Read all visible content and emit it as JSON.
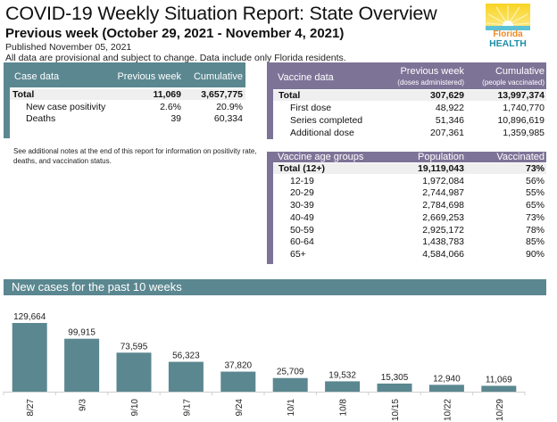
{
  "header": {
    "title": "COVID-19 Weekly Situation Report: State Overview",
    "subtitle": "Previous week (October 29, 2021 - November 4, 2021)",
    "published": "Published November 05, 2021",
    "disclaimer": "All data are provisional and subject to change. Data include only Florida residents."
  },
  "logo": {
    "line1": "Florida",
    "line2": "HEALTH",
    "icon": "sunrise-logo-icon"
  },
  "colors": {
    "case_teal": "#5b8790",
    "vaccine_purple": "#7d7397",
    "total_row_bg": "#efefef",
    "bar": "#5b8790"
  },
  "case_table": {
    "headers": [
      "Case data",
      "Previous week",
      "Cumulative"
    ],
    "rows": [
      {
        "label": "Total",
        "previous_week": "11,069",
        "cumulative": "3,657,775"
      },
      {
        "label": "New case positivity",
        "previous_week": "2.6%",
        "cumulative": "20.9%"
      },
      {
        "label": "Deaths",
        "previous_week": "39",
        "cumulative": "60,334"
      }
    ]
  },
  "notes": "See additional notes at the end of this report for information on positivity rate, deaths, and vaccination status.",
  "vaccine_table": {
    "headers": [
      "Vaccine data",
      "Previous week",
      "Cumulative"
    ],
    "subheaders": [
      "",
      "(doses administered)",
      "(people vaccinated)"
    ],
    "rows": [
      {
        "label": "Total",
        "previous_week": "307,629",
        "cumulative": "13,997,374"
      },
      {
        "label": "First dose",
        "previous_week": "48,922",
        "cumulative": "1,740,770"
      },
      {
        "label": "Series completed",
        "previous_week": "51,346",
        "cumulative": "10,896,619"
      },
      {
        "label": "Additional dose",
        "previous_week": "207,361",
        "cumulative": "1,359,985"
      }
    ]
  },
  "age_table": {
    "headers": [
      "Vaccine age groups",
      "Population",
      "Vaccinated"
    ],
    "rows": [
      {
        "label": "Total (12+)",
        "population": "19,119,043",
        "vaccinated": "73%"
      },
      {
        "label": "12-19",
        "population": "1,972,084",
        "vaccinated": "56%"
      },
      {
        "label": "20-29",
        "population": "2,744,987",
        "vaccinated": "55%"
      },
      {
        "label": "30-39",
        "population": "2,784,698",
        "vaccinated": "65%"
      },
      {
        "label": "40-49",
        "population": "2,669,253",
        "vaccinated": "73%"
      },
      {
        "label": "50-59",
        "population": "2,925,172",
        "vaccinated": "78%"
      },
      {
        "label": "60-64",
        "population": "1,438,783",
        "vaccinated": "85%"
      },
      {
        "label": "65+",
        "population": "4,584,066",
        "vaccinated": "90%"
      }
    ]
  },
  "chart_section": {
    "title": "New cases for the past 10 weeks"
  },
  "chart_data": {
    "type": "bar",
    "title": "New cases for the past 10 weeks",
    "xlabel": "",
    "ylabel": "",
    "categories": [
      "8/27",
      "9/3",
      "9/10",
      "9/17",
      "9/24",
      "10/1",
      "10/8",
      "10/15",
      "10/22",
      "10/29"
    ],
    "values": [
      129664,
      99915,
      73595,
      56323,
      37820,
      25709,
      19532,
      15305,
      12940,
      11069
    ],
    "value_labels": [
      "129,664",
      "99,915",
      "73,595",
      "56,323",
      "37,820",
      "25,709",
      "19,532",
      "15,305",
      "12,940",
      "11,069"
    ],
    "ylim": [
      0,
      129664
    ],
    "grid": false,
    "legend": "none",
    "tick_label_rotation": "vertical"
  }
}
